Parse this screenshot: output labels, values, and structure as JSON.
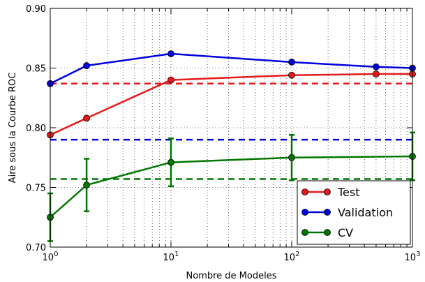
{
  "chart_data": {
    "type": "line",
    "xlabel": "Nombre de Modeles",
    "ylabel": "Aire sous la Courbe ROC",
    "xscale": "log",
    "xlim": [
      1,
      1000
    ],
    "ylim": [
      0.7,
      0.9
    ],
    "x_ticks": [
      {
        "value": 1,
        "mantissa": "10",
        "exp": "0"
      },
      {
        "value": 10,
        "mantissa": "10",
        "exp": "1"
      },
      {
        "value": 100,
        "mantissa": "10",
        "exp": "2"
      },
      {
        "value": 1000,
        "mantissa": "10",
        "exp": "3"
      }
    ],
    "y_ticks": [
      "0.70",
      "0.75",
      "0.80",
      "0.85",
      "0.90"
    ],
    "grid": true,
    "legend_position": "bottom-right",
    "series": [
      {
        "name": "Test",
        "color": "#e41a1c",
        "x": [
          1,
          2,
          10,
          100,
          500,
          1000
        ],
        "y": [
          0.794,
          0.808,
          0.84,
          0.844,
          0.845,
          0.845
        ],
        "baseline": 0.837
      },
      {
        "name": "Validation",
        "color": "#0000dd",
        "x": [
          1,
          2,
          10,
          100,
          500,
          1000
        ],
        "y": [
          0.837,
          0.852,
          0.862,
          0.855,
          0.851,
          0.85
        ],
        "baseline": 0.79
      },
      {
        "name": "CV",
        "color": "#007700",
        "x": [
          1,
          2,
          10,
          100,
          1000
        ],
        "y": [
          0.725,
          0.752,
          0.771,
          0.775,
          0.776
        ],
        "yerr": [
          0.02,
          0.022,
          0.02,
          0.019,
          0.02
        ],
        "baseline": 0.757
      }
    ]
  }
}
